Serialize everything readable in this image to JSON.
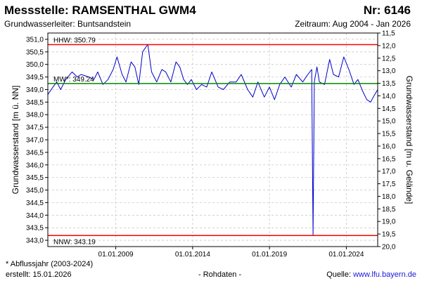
{
  "header": {
    "title": "Messstelle: RAMSENTHAL GWM4",
    "number": "Nr: 6146",
    "aquifer": "Grundwasserleiter: Buntsandstein",
    "period": "Zeitraum: Aug 2004 - Jan 2026"
  },
  "footer": {
    "footnote": "* Abflussjahr (2003-2024)",
    "created": "erstellt:  15.01.2026",
    "rawdata": "- Rohdaten -",
    "source_label": "Quelle: ",
    "source_url": "www.lfu.bayern.de"
  },
  "colors": {
    "series": "#0000cc",
    "hhw": "#ff0000",
    "nnw": "#ff0000",
    "mw": "#008800",
    "grid": "#c8c8c8"
  },
  "chart_data": {
    "type": "line",
    "ylabel": "Grundwasserstand [m ü. NN]",
    "y2label": "Grundwasserstand [m u. Gelände]",
    "ylim": [
      342.75,
      351.25
    ],
    "y2lim": [
      20.0,
      11.5
    ],
    "yticks": [
      "351,0",
      "350,5",
      "350,0",
      "349,5",
      "349,0",
      "348,5",
      "348,0",
      "347,5",
      "347,0",
      "346,5",
      "346,0",
      "345,5",
      "345,0",
      "344,5",
      "344,0",
      "343,5",
      "343,0"
    ],
    "ytick_values": [
      351.0,
      350.5,
      350.0,
      349.5,
      349.0,
      348.5,
      348.0,
      347.5,
      347.0,
      346.5,
      346.0,
      345.5,
      345.0,
      344.5,
      344.0,
      343.5,
      343.0
    ],
    "y2ticks": [
      "11,5",
      "12,0",
      "12,5",
      "13,0",
      "13,5",
      "14,0",
      "14,5",
      "15,0",
      "15,5",
      "16,0",
      "16,5",
      "17,0",
      "17,5",
      "18,0",
      "18,5",
      "19,0",
      "19,5",
      "20,0"
    ],
    "y2tick_values": [
      11.5,
      12.0,
      12.5,
      13.0,
      13.5,
      14.0,
      14.5,
      15.0,
      15.5,
      16.0,
      16.5,
      17.0,
      17.5,
      18.0,
      18.5,
      19.0,
      19.5,
      20.0
    ],
    "xlim": [
      "2004-08-01",
      "2026-01-15"
    ],
    "xticks": [
      "01.01.2009",
      "01.01.2014",
      "01.01.2019",
      "01.01.2024"
    ],
    "xtick_dates": [
      "2009-01-01",
      "2014-01-01",
      "2019-01-01",
      "2024-01-01"
    ],
    "grid": true,
    "reference_lines": [
      {
        "label": "HHW: 350.79",
        "value": 350.79,
        "color": "#ff0000"
      },
      {
        "label": "MW*: 349.24",
        "value": 349.24,
        "color": "#008800"
      },
      {
        "label": "NNW: 343.19",
        "value": 343.19,
        "color": "#ff0000"
      }
    ],
    "series": [
      {
        "x": [
          "2004-08-01",
          "2004-12-01",
          "2005-03-01",
          "2005-06-01",
          "2005-10-01",
          "2006-03-01",
          "2006-07-01",
          "2006-10-01",
          "2007-04-01",
          "2007-08-01",
          "2007-11-01",
          "2008-03-01",
          "2008-07-01",
          "2008-11-01",
          "2009-02-01",
          "2009-06-01",
          "2009-09-01",
          "2010-01-01",
          "2010-04-01",
          "2010-07-01",
          "2010-10-01",
          "2011-02-01",
          "2011-05-01",
          "2011-09-01",
          "2012-01-01",
          "2012-04-01",
          "2012-08-01",
          "2012-12-01",
          "2013-03-01",
          "2013-06-01",
          "2013-09-01",
          "2013-12-01",
          "2014-04-01",
          "2014-08-01",
          "2014-12-01",
          "2015-04-01",
          "2015-09-01",
          "2016-01-01",
          "2016-06-01",
          "2016-11-01",
          "2017-03-01",
          "2017-08-01",
          "2017-12-01",
          "2018-04-01",
          "2018-09-01",
          "2019-01-01",
          "2019-05-01",
          "2019-09-01",
          "2020-01-01",
          "2020-06-01",
          "2020-10-01",
          "2021-03-01",
          "2021-07-01",
          "2021-10-01",
          "2021-11-01",
          "2021-12-01",
          "2022-02-01",
          "2022-04-01",
          "2022-08-01",
          "2022-12-01",
          "2023-03-01",
          "2023-07-01",
          "2023-11-01",
          "2024-03-01",
          "2024-07-01",
          "2024-10-01",
          "2025-02-01",
          "2025-05-01",
          "2025-08-01",
          "2025-10-01",
          "2026-01-15"
        ],
        "y": [
          348.8,
          349.1,
          349.3,
          349.0,
          349.4,
          349.7,
          349.5,
          349.6,
          349.5,
          349.4,
          349.7,
          349.2,
          349.4,
          349.8,
          350.3,
          349.6,
          349.3,
          350.1,
          349.9,
          349.2,
          350.5,
          350.8,
          349.7,
          349.3,
          349.8,
          349.7,
          349.3,
          350.1,
          349.9,
          349.4,
          349.2,
          349.4,
          349.0,
          349.2,
          349.1,
          349.7,
          349.1,
          349.0,
          349.3,
          349.3,
          349.6,
          349.0,
          348.7,
          349.3,
          348.7,
          349.1,
          348.6,
          349.2,
          349.5,
          349.1,
          349.6,
          349.3,
          349.6,
          349.8,
          343.2,
          349.3,
          349.9,
          349.3,
          349.2,
          350.2,
          349.6,
          349.5,
          350.3,
          349.8,
          349.2,
          349.4,
          348.9,
          348.6,
          348.5,
          348.7,
          349.0
        ]
      }
    ]
  }
}
